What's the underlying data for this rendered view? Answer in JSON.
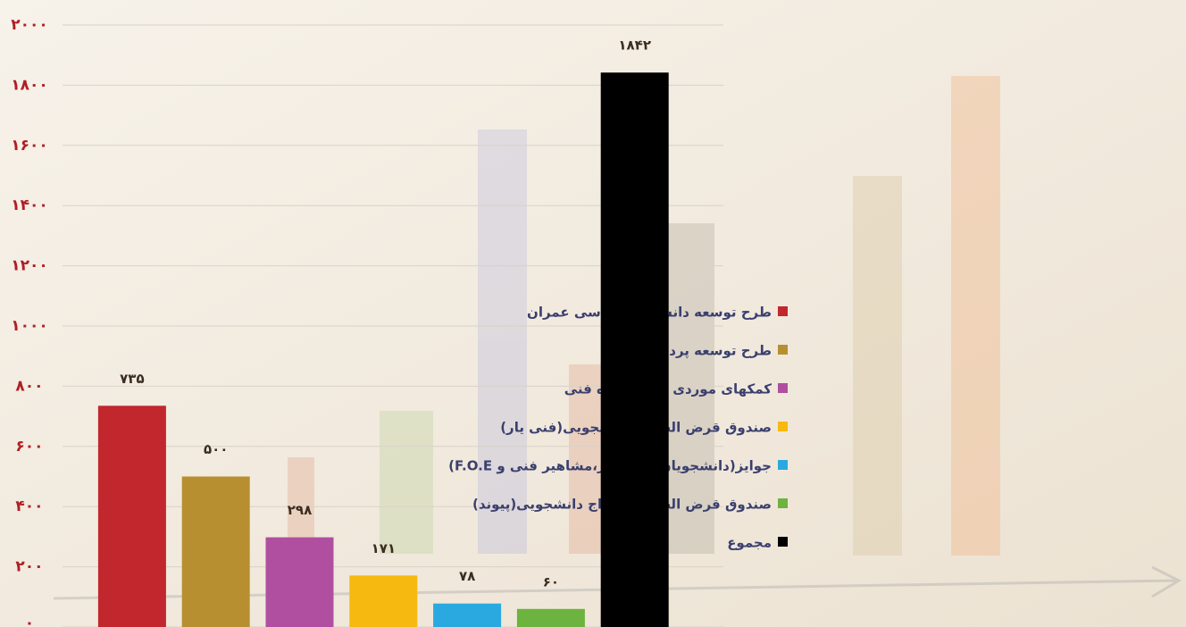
{
  "chart_data": {
    "type": "bar",
    "categories": [
      "طرح توسعه دانشکده مهندسی عمران",
      "طرح توسعه پردیس۲",
      "کمکهای موردی به دانشکده فنی",
      "صندوق قرض الحسنه دانشجویی(فنی یار)",
      "جوایز(دانشجویان رتبه برتر،مشاهیر فنی و F.O.E)",
      "صندوق قرض الحسنه ازدواج دانشجویی(پیوند)",
      "مجموع"
    ],
    "values": [
      735,
      500,
      298,
      171,
      78,
      60,
      1842
    ],
    "value_labels": [
      "۷۳۵",
      "۵۰۰",
      "۲۹۸",
      "۱۷۱",
      "۷۸",
      "۶۰",
      "۱۸۴۲"
    ],
    "colors": [
      "#c1272d",
      "#b88f30",
      "#b04f9f",
      "#f6b90f",
      "#2aa9e0",
      "#6db33f",
      "#000000"
    ],
    "ylim": [
      0,
      2000
    ],
    "yticks": [
      {
        "value": 0,
        "label": "۰"
      },
      {
        "value": 200,
        "label": "۲۰۰"
      },
      {
        "value": 400,
        "label": "۴۰۰"
      },
      {
        "value": 600,
        "label": "۶۰۰"
      },
      {
        "value": 800,
        "label": "۸۰۰"
      },
      {
        "value": 1000,
        "label": "۱۰۰۰"
      },
      {
        "value": 1200,
        "label": "۱۲۰۰"
      },
      {
        "value": 1400,
        "label": "۱۴۰۰"
      },
      {
        "value": 1600,
        "label": "۱۶۰۰"
      },
      {
        "value": 1800,
        "label": "۱۸۰۰"
      },
      {
        "value": 2000,
        "label": "۲۰۰۰"
      }
    ],
    "grid": true,
    "legend": "right"
  }
}
